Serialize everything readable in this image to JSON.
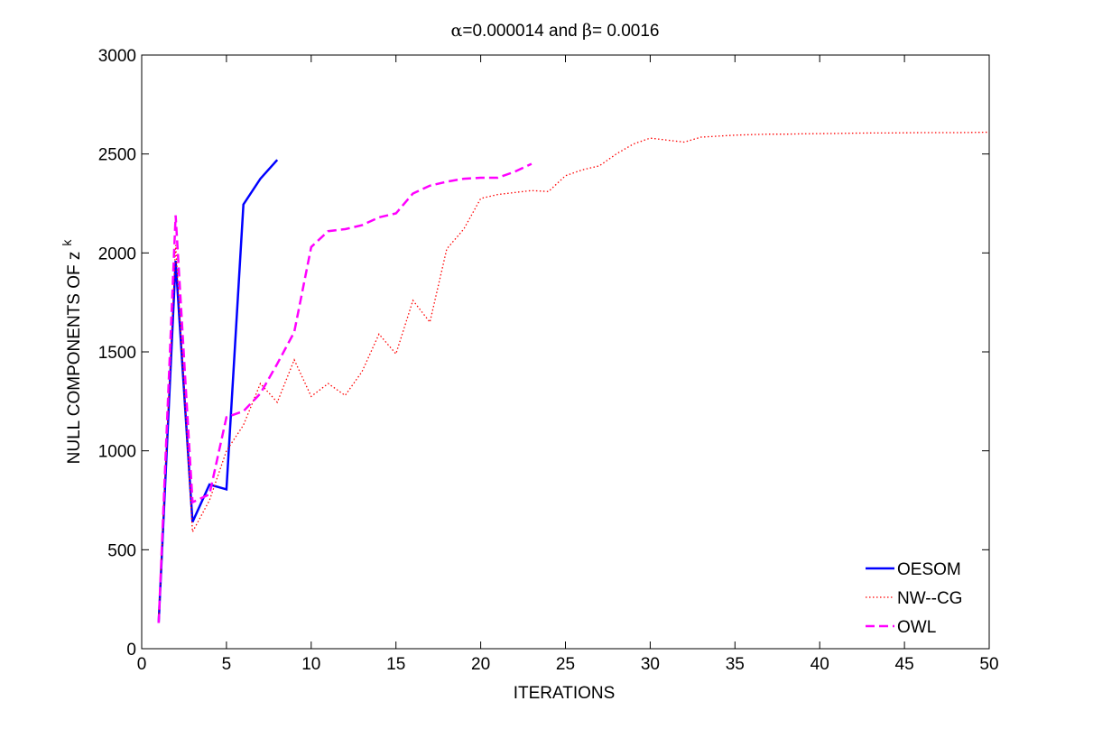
{
  "chart_data": {
    "type": "line",
    "title_parts": [
      "α",
      "=0.000014 and ",
      "β",
      "= 0.0016"
    ],
    "xlabel": "ITERATIONS",
    "ylabel_main": "NULL COMPONENTS OF z",
    "ylabel_sup": "k",
    "xlim": [
      0,
      50
    ],
    "ylim": [
      0,
      3000
    ],
    "xticks": [
      0,
      5,
      10,
      15,
      20,
      25,
      30,
      35,
      40,
      45,
      50
    ],
    "yticks": [
      0,
      500,
      1000,
      1500,
      2000,
      2500,
      3000
    ],
    "grid": false,
    "legend_position": "bottom-right",
    "series": [
      {
        "name": "OESOM",
        "color": "#0000ff",
        "style": "solid",
        "x": [
          1,
          2,
          3,
          4,
          5,
          6,
          7,
          8
        ],
        "y": [
          130,
          1960,
          640,
          830,
          805,
          2245,
          2375,
          2470
        ]
      },
      {
        "name": "NW--CG",
        "color": "#ff0000",
        "style": "dotted",
        "x": [
          1,
          2,
          3,
          4,
          5,
          6,
          7,
          8,
          9,
          10,
          11,
          12,
          13,
          14,
          15,
          16,
          17,
          18,
          19,
          20,
          21,
          22,
          23,
          24,
          25,
          26,
          27,
          28,
          29,
          30,
          31,
          32,
          33,
          34,
          35,
          36,
          37,
          38,
          39,
          40,
          41,
          42,
          43,
          44,
          45,
          46,
          47,
          48,
          49,
          50
        ],
        "y": [
          140,
          2040,
          590,
          750,
          1000,
          1130,
          1340,
          1245,
          1460,
          1275,
          1340,
          1280,
          1400,
          1590,
          1490,
          1760,
          1650,
          2020,
          2120,
          2275,
          2295,
          2305,
          2315,
          2310,
          2390,
          2420,
          2440,
          2500,
          2550,
          2580,
          2570,
          2560,
          2585,
          2590,
          2595,
          2598,
          2600,
          2600,
          2602,
          2603,
          2604,
          2605,
          2606,
          2606,
          2607,
          2608,
          2608,
          2608,
          2609,
          2610
        ]
      },
      {
        "name": "OWL",
        "color": "#ff00ff",
        "style": "dashed",
        "x": [
          1,
          2,
          3,
          4,
          5,
          6,
          7,
          8,
          9,
          10,
          11,
          12,
          13,
          14,
          15,
          16,
          17,
          18,
          19,
          20,
          21,
          22,
          23
        ],
        "y": [
          130,
          2190,
          740,
          780,
          1170,
          1200,
          1290,
          1440,
          1600,
          2030,
          2110,
          2120,
          2140,
          2180,
          2200,
          2300,
          2340,
          2360,
          2375,
          2380,
          2380,
          2410,
          2450
        ]
      }
    ]
  }
}
